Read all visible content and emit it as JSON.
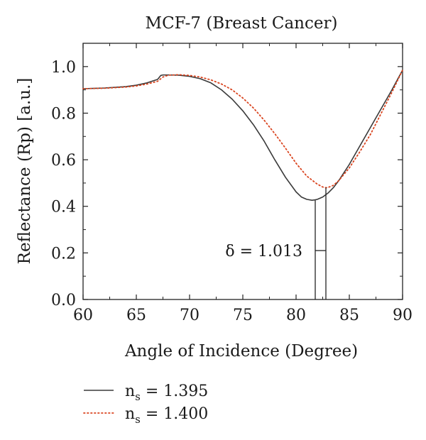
{
  "chart_data": {
    "type": "line",
    "title": "MCF-7 (Breast Cancer)",
    "xlabel": "Angle of Incidence (Degree)",
    "ylabel": "Reflectance (Rp) [a.u.]",
    "xlim": [
      60,
      90
    ],
    "ylim": [
      0.0,
      1.1
    ],
    "x_ticks": [
      "60",
      "65",
      "70",
      "75",
      "80",
      "85",
      "90"
    ],
    "y_ticks": [
      "0.0",
      "0.2",
      "0.4",
      "0.6",
      "0.8",
      "1.0"
    ],
    "grid": false,
    "legend_position": "bottom-left",
    "series": [
      {
        "name": "n_s = 1.395",
        "name_main": "n",
        "name_sub": "s",
        "name_value": " = 1.395",
        "style": "solid",
        "color": "#3a3a3a",
        "x": [
          60,
          62,
          64,
          65,
          66,
          67,
          67.3,
          67.5,
          68,
          69,
          70,
          71,
          72,
          73,
          74,
          75,
          76,
          77,
          78,
          79,
          80,
          80.5,
          81,
          81.5,
          81.8,
          82,
          82.5,
          83,
          83.5,
          84,
          85,
          86,
          87,
          88,
          89,
          90
        ],
        "y": [
          0.905,
          0.908,
          0.914,
          0.92,
          0.93,
          0.945,
          0.962,
          0.964,
          0.964,
          0.963,
          0.958,
          0.948,
          0.93,
          0.9,
          0.86,
          0.81,
          0.75,
          0.68,
          0.6,
          0.525,
          0.462,
          0.44,
          0.43,
          0.426,
          0.428,
          0.43,
          0.44,
          0.457,
          0.48,
          0.51,
          0.58,
          0.66,
          0.74,
          0.82,
          0.9,
          0.985
        ]
      },
      {
        "name": "n_s = 1.400",
        "name_main": "n",
        "name_sub": "s",
        "name_value": " = 1.400",
        "style": "dotted",
        "color": "#d9431e",
        "x": [
          60,
          62,
          64,
          65,
          66,
          67,
          67.5,
          68,
          69,
          70,
          71,
          72,
          73,
          74,
          75,
          76,
          77,
          78,
          79,
          80,
          81,
          82,
          82.5,
          82.8,
          83,
          83.5,
          84,
          85,
          86,
          87,
          88,
          89,
          90
        ],
        "y": [
          0.905,
          0.907,
          0.912,
          0.917,
          0.925,
          0.937,
          0.955,
          0.963,
          0.965,
          0.962,
          0.955,
          0.943,
          0.925,
          0.9,
          0.865,
          0.822,
          0.77,
          0.712,
          0.65,
          0.585,
          0.53,
          0.495,
          0.483,
          0.48,
          0.481,
          0.49,
          0.51,
          0.565,
          0.635,
          0.71,
          0.8,
          0.89,
          0.985
        ]
      }
    ],
    "annotations": [
      {
        "text": "δ = 1.013",
        "min1_x": 81.8,
        "min1_y": 0.426,
        "min2_x": 82.8,
        "min2_y": 0.48,
        "bar_y": 0.21
      }
    ]
  }
}
